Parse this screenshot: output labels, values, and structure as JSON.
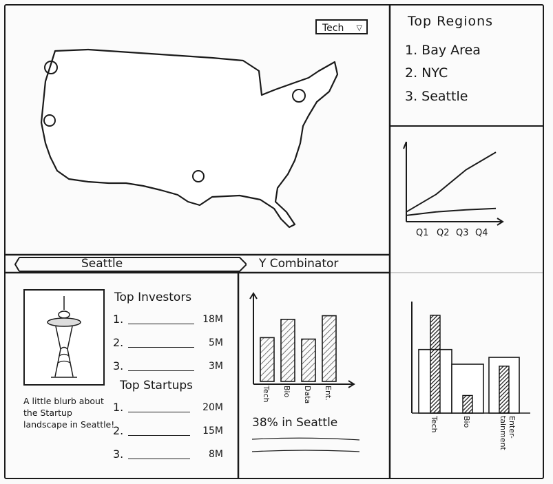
{
  "filter": {
    "selected": "Tech"
  },
  "top_regions": {
    "title": "Top Regions",
    "items": [
      "1. Bay Area",
      "2. NYC",
      "3. Seattle"
    ]
  },
  "line_chart": {
    "chart_data": {
      "type": "line",
      "categories": [
        "Q1",
        "Q2",
        "Q3",
        "Q4"
      ],
      "series": [
        {
          "values": [
            0.1,
            0.35,
            0.7,
            0.95
          ]
        },
        {
          "values": [
            0.05,
            0.1,
            0.13,
            0.15
          ]
        }
      ],
      "xlabel": "",
      "ylabel": "",
      "ylim": [
        0,
        1
      ]
    },
    "tick_labels": [
      "Q1",
      "Q2",
      "Q3",
      "Q4"
    ]
  },
  "seattle_panel": {
    "tab": "Seattle",
    "blurb": "A little blurb about the Startup landscape in Seattle!",
    "investors": {
      "title": "Top Investors",
      "rows": [
        {
          "index": "1.",
          "amount": "18M"
        },
        {
          "index": "2.",
          "amount": "5M"
        },
        {
          "index": "3.",
          "amount": "3M"
        }
      ]
    },
    "startups": {
      "title": "Top Startups",
      "rows": [
        {
          "index": "1.",
          "amount": "20M"
        },
        {
          "index": "2.",
          "amount": "15M"
        },
        {
          "index": "3.",
          "amount": "8M"
        }
      ]
    }
  },
  "yc_panel": {
    "tab": "Y Combinator",
    "stat": "38% in Seattle",
    "chart_data": {
      "type": "bar",
      "categories": [
        "Tech",
        "Bio",
        "Data",
        "Ent."
      ],
      "values": [
        0.6,
        0.85,
        0.58,
        0.9
      ],
      "ylim": [
        0,
        1
      ]
    }
  },
  "right_bar_chart": {
    "chart_data": {
      "type": "bar",
      "categories": [
        "Tech",
        "Bio",
        "Entertainment"
      ],
      "series": [
        {
          "values": [
            0.65,
            0.5,
            0.57
          ]
        },
        {
          "values": [
            1.0,
            0.18,
            0.48
          ]
        }
      ],
      "ylim": [
        0,
        1
      ]
    },
    "labels": [
      "Tech",
      "Bio",
      "Enter- tainment"
    ]
  },
  "colors": {
    "ink": "#1a1a1a",
    "paper": "#fbfbfb",
    "hatch": "#555555"
  }
}
